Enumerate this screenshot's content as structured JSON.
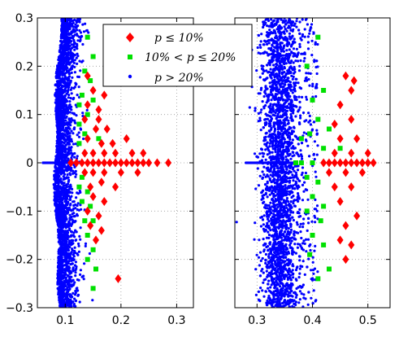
{
  "chart_data": [
    {
      "type": "scatter",
      "panel": "left",
      "xlim": [
        0.05,
        0.33
      ],
      "ylim": [
        -0.3,
        0.3
      ],
      "x_ticks": [
        0.1,
        0.2,
        0.3
      ],
      "x_tick_labels": [
        "0.1",
        "0.2",
        "0.3"
      ],
      "y_ticks": [
        -0.3,
        -0.2,
        -0.1,
        0,
        0.1,
        0.2,
        0.3
      ],
      "y_tick_labels": [
        "−0.3",
        "−0.2",
        "−0.1",
        "0",
        "0.1",
        "0.2",
        "0.3"
      ],
      "grid": true,
      "legend_placement": "top-right",
      "series": [
        {
          "name": "p ≤ 10%",
          "marker": "diamond",
          "color": "#ff0000",
          "points": [
            [
              0.11,
              0
            ],
            [
              0.12,
              0
            ],
            [
              0.13,
              0
            ],
            [
              0.14,
              0
            ],
            [
              0.15,
              0
            ],
            [
              0.16,
              0
            ],
            [
              0.17,
              0
            ],
            [
              0.18,
              0
            ],
            [
              0.19,
              0
            ],
            [
              0.2,
              0
            ],
            [
              0.21,
              0
            ],
            [
              0.22,
              0
            ],
            [
              0.23,
              0
            ],
            [
              0.24,
              0
            ],
            [
              0.25,
              0
            ],
            [
              0.265,
              0
            ],
            [
              0.285,
              0
            ],
            [
              0.135,
              0.02
            ],
            [
              0.15,
              0.02
            ],
            [
              0.17,
              0.02
            ],
            [
              0.19,
              0.02
            ],
            [
              0.22,
              0.02
            ],
            [
              0.24,
              0.02
            ],
            [
              0.135,
              -0.02
            ],
            [
              0.15,
              -0.02
            ],
            [
              0.17,
              -0.02
            ],
            [
              0.2,
              -0.02
            ],
            [
              0.23,
              -0.02
            ],
            [
              0.14,
              0.05
            ],
            [
              0.165,
              0.04
            ],
            [
              0.185,
              0.04
            ],
            [
              0.21,
              0.05
            ],
            [
              0.155,
              0.07
            ],
            [
              0.175,
              0.07
            ],
            [
              0.135,
              0.09
            ],
            [
              0.16,
              0.09
            ],
            [
              0.145,
              -0.05
            ],
            [
              0.165,
              -0.04
            ],
            [
              0.19,
              -0.05
            ],
            [
              0.15,
              -0.07
            ],
            [
              0.17,
              -0.08
            ],
            [
              0.14,
              -0.1
            ],
            [
              0.16,
              -0.11
            ],
            [
              0.145,
              -0.13
            ],
            [
              0.165,
              -0.14
            ],
            [
              0.155,
              -0.16
            ],
            [
              0.14,
              0.12
            ],
            [
              0.16,
              0.11
            ],
            [
              0.15,
              0.15
            ],
            [
              0.14,
              0.18
            ],
            [
              0.17,
              0.14
            ],
            [
              0.195,
              -0.24
            ]
          ]
        },
        {
          "name": "10% < p ≤ 20%",
          "marker": "square",
          "color": "#00e000",
          "points": [
            [
              0.14,
              0.26
            ],
            [
              0.15,
              0.22
            ],
            [
              0.135,
              0.19
            ],
            [
              0.145,
              0.17
            ],
            [
              0.13,
              0.14
            ],
            [
              0.15,
              0.13
            ],
            [
              0.14,
              0.1
            ],
            [
              0.125,
              0.12
            ],
            [
              0.135,
              0.06
            ],
            [
              0.125,
              0.04
            ],
            [
              0.13,
              -0.03
            ],
            [
              0.14,
              -0.06
            ],
            [
              0.13,
              -0.08
            ],
            [
              0.145,
              -0.09
            ],
            [
              0.135,
              -0.12
            ],
            [
              0.15,
              -0.12
            ],
            [
              0.14,
              -0.15
            ],
            [
              0.15,
              -0.18
            ],
            [
              0.14,
              -0.2
            ],
            [
              0.155,
              -0.22
            ],
            [
              0.15,
              -0.26
            ],
            [
              0.125,
              -0.05
            ],
            [
              0.16,
              0.05
            ],
            [
              0.125,
              0.08
            ]
          ]
        },
        {
          "name": "p > 20%",
          "marker": "dot",
          "color": "#0000ff",
          "generated": "dense band along 0.08–0.13 forming a crescent, plus horizontal line at y = 0 from 0.06 to 0.12"
        }
      ]
    },
    {
      "type": "scatter",
      "panel": "right",
      "xlim": [
        0.26,
        0.54
      ],
      "ylim": [
        -0.3,
        0.3
      ],
      "x_ticks": [
        0.3,
        0.4,
        0.5
      ],
      "x_tick_labels": [
        "0.3",
        "0.4",
        "0.5"
      ],
      "grid": true,
      "series": [
        {
          "name": "p ≤ 10%",
          "marker": "diamond",
          "color": "#ff0000",
          "points": [
            [
              0.42,
              0
            ],
            [
              0.43,
              0
            ],
            [
              0.44,
              0
            ],
            [
              0.45,
              0
            ],
            [
              0.46,
              0
            ],
            [
              0.47,
              0
            ],
            [
              0.48,
              0
            ],
            [
              0.49,
              0
            ],
            [
              0.5,
              0
            ],
            [
              0.51,
              0
            ],
            [
              0.44,
              0.02
            ],
            [
              0.47,
              0.02
            ],
            [
              0.5,
              0.02
            ],
            [
              0.43,
              -0.02
            ],
            [
              0.46,
              -0.02
            ],
            [
              0.49,
              -0.02
            ],
            [
              0.45,
              0.05
            ],
            [
              0.48,
              0.05
            ],
            [
              0.44,
              0.08
            ],
            [
              0.47,
              0.09
            ],
            [
              0.45,
              0.12
            ],
            [
              0.46,
              0.18
            ],
            [
              0.475,
              0.17
            ],
            [
              0.47,
              0.15
            ],
            [
              0.44,
              -0.05
            ],
            [
              0.47,
              -0.05
            ],
            [
              0.45,
              -0.08
            ],
            [
              0.48,
              -0.11
            ],
            [
              0.46,
              -0.13
            ],
            [
              0.45,
              -0.16
            ],
            [
              0.47,
              -0.17
            ],
            [
              0.46,
              -0.2
            ]
          ]
        },
        {
          "name": "10% < p ≤ 20%",
          "marker": "square",
          "color": "#00e000",
          "points": [
            [
              0.41,
              0.26
            ],
            [
              0.39,
              0.2
            ],
            [
              0.42,
              0.15
            ],
            [
              0.4,
              0.13
            ],
            [
              0.41,
              0.09
            ],
            [
              0.395,
              0.06
            ],
            [
              0.43,
              0.07
            ],
            [
              0.38,
              0.05
            ],
            [
              0.42,
              0.03
            ],
            [
              0.45,
              0.03
            ],
            [
              0.39,
              -0.03
            ],
            [
              0.41,
              -0.04
            ],
            [
              0.4,
              -0.07
            ],
            [
              0.42,
              -0.09
            ],
            [
              0.39,
              -0.1
            ],
            [
              0.415,
              -0.12
            ],
            [
              0.4,
              -0.15
            ],
            [
              0.42,
              -0.17
            ],
            [
              0.395,
              -0.19
            ],
            [
              0.41,
              -0.24
            ],
            [
              0.43,
              -0.22
            ],
            [
              0.37,
              0.0
            ],
            [
              0.38,
              0.0
            ],
            [
              0.4,
              0.0
            ]
          ]
        },
        {
          "name": "p > 20%",
          "marker": "dot",
          "color": "#0000ff",
          "generated": "dense vertical band 0.31–0.37 across full y range, sparse points to 0.41, horizontal line at y = 0 from 0.28 to 0.37"
        }
      ]
    }
  ],
  "legend": {
    "entries": [
      {
        "label": "p ≤ 10%",
        "marker": "diamond",
        "color": "#ff0000"
      },
      {
        "label": "10% < p ≤ 20%",
        "marker": "square",
        "color": "#00e000"
      },
      {
        "label": "p > 20%",
        "marker": "dot",
        "color": "#0000ff"
      }
    ]
  }
}
